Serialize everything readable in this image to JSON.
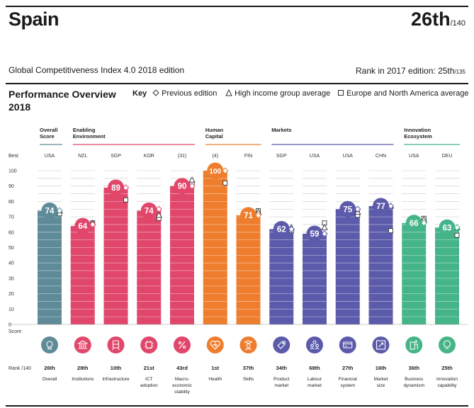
{
  "header": {
    "country": "Spain",
    "rank": "26th",
    "rank_total": "/140",
    "index_title": "Global Competitiveness Index 4.0 2018 edition",
    "prev_rank_label": "Rank in 2017 edition: 25th",
    "prev_rank_total": "/135"
  },
  "overview": {
    "title_line1": "Performance Overview",
    "title_line2": "2018",
    "key_label": "Key",
    "key_prev": "Previous edition",
    "key_high": "High income group average",
    "key_europe": "Europe and North America average"
  },
  "axis": {
    "best_label": "Best",
    "score_label": "Score",
    "rank_label": "Rank /140",
    "ticks": [
      "0",
      "10",
      "20",
      "30",
      "40",
      "50",
      "60",
      "70",
      "80",
      "90",
      "100"
    ]
  },
  "colors": {
    "overall": "#5f8b98",
    "enabling": "#e0476b",
    "human": "#ee7d2d",
    "markets": "#5c5bab",
    "innovation": "#45b489"
  },
  "chart_data": {
    "type": "bar",
    "ylim": [
      0,
      100
    ],
    "groups": [
      {
        "name": "Overall Score",
        "line1": "Overall",
        "line2": "Score",
        "color": "overall",
        "pillars": [
          0
        ]
      },
      {
        "name": "Enabling Environment",
        "line1": "Enabling",
        "line2": "Environment",
        "color": "enabling",
        "pillars": [
          1,
          2,
          3,
          4
        ]
      },
      {
        "name": "Human Capital",
        "line1": "Human",
        "line2": "Capital",
        "color": "human",
        "pillars": [
          5,
          6
        ]
      },
      {
        "name": "Markets",
        "line1": "Markets",
        "line2": "",
        "color": "markets",
        "pillars": [
          7,
          8,
          9,
          10
        ]
      },
      {
        "name": "Innovation Ecosystem",
        "line1": "Innovation",
        "line2": "Ecosystem",
        "color": "innovation",
        "pillars": [
          11,
          12
        ]
      }
    ],
    "pillars": [
      {
        "label1": "Overall",
        "label2": "",
        "label3": "",
        "best": "USA",
        "score": 74,
        "rank": "26th",
        "prev": 74,
        "high": 74,
        "europe": 72,
        "color": "overall",
        "icon": "medal-icon"
      },
      {
        "label1": "Institutions",
        "label2": "",
        "label3": "",
        "best": "NZL",
        "score": 64,
        "rank": "28th",
        "prev": 65,
        "high": 66,
        "europe": 66,
        "color": "enabling",
        "icon": "institutions-icon"
      },
      {
        "label1": "Infrastructure",
        "label2": "",
        "label3": "",
        "best": "SGP",
        "score": 89,
        "rank": "10th",
        "prev": 89,
        "high": null,
        "europe": 81,
        "color": "enabling",
        "icon": "train-icon"
      },
      {
        "label1": "ICT",
        "label2": "adoption",
        "label3": "",
        "best": "KOR",
        "score": 74,
        "rank": "21st",
        "prev": 75,
        "high": 71,
        "europe": 69,
        "color": "enabling",
        "icon": "chip-icon"
      },
      {
        "label1": "Macro-",
        "label2": "economic",
        "label3": "stability",
        "best": "(31)",
        "score": 90,
        "rank": "43rd",
        "prev": 90,
        "high": 94,
        "europe": 92,
        "color": "enabling",
        "icon": "percent-icon"
      },
      {
        "label1": "Health",
        "label2": "",
        "label3": "",
        "best": "(4)",
        "score": 100,
        "rank": "1st",
        "prev": 100,
        "high": null,
        "europe": 92,
        "color": "human",
        "icon": "heart-icon"
      },
      {
        "label1": "Skills",
        "label2": "",
        "label3": "",
        "best": "FIN",
        "score": 71,
        "rank": "37th",
        "prev": 71,
        "high": 73,
        "europe": 74,
        "color": "human",
        "icon": "graduate-icon"
      },
      {
        "label1": "Product",
        "label2": "market",
        "label3": "",
        "best": "SGP",
        "score": 62,
        "rank": "34th",
        "prev": 62,
        "high": 63,
        "europe": 61,
        "color": "markets",
        "icon": "tag-icon"
      },
      {
        "label1": "Labour",
        "label2": "market",
        "label3": "",
        "best": "USA",
        "score": 59,
        "rank": "68th",
        "prev": 59,
        "high": 63,
        "europe": 66,
        "color": "markets",
        "icon": "people-icon"
      },
      {
        "label1": "Financial",
        "label2": "system",
        "label3": "",
        "best": "USA",
        "score": 75,
        "rank": "27th",
        "prev": 75,
        "high": 73,
        "europe": 71,
        "color": "markets",
        "icon": "card-icon"
      },
      {
        "label1": "Market",
        "label2": "size",
        "label3": "",
        "best": "CHN",
        "score": 77,
        "rank": "16th",
        "prev": 77,
        "high": 77,
        "europe": 61,
        "color": "markets",
        "icon": "expand-icon"
      },
      {
        "label1": "Business",
        "label2": "dynamism",
        "label3": "",
        "best": "USA",
        "score": 66,
        "rank": "36th",
        "prev": 66,
        "high": 68,
        "europe": 69,
        "color": "innovation",
        "icon": "building-icon"
      },
      {
        "label1": "Innovation",
        "label2": "capability",
        "label3": "",
        "best": "DEU",
        "score": 63,
        "rank": "25th",
        "prev": 63,
        "high": 63,
        "europe": 58,
        "color": "innovation",
        "icon": "bulb-icon"
      }
    ]
  }
}
